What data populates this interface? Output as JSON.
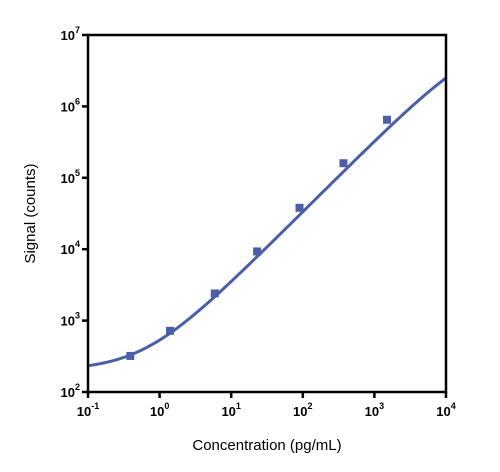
{
  "chart_data": {
    "type": "scatter",
    "title": "",
    "xlabel": "Concentration (pg/mL)",
    "ylabel": "Signal (counts)",
    "x_scale": "log",
    "y_scale": "log",
    "xlim": [
      0.1,
      10000
    ],
    "ylim": [
      100,
      10000000
    ],
    "x_ticks": [
      {
        "value": 0.1,
        "base": "10",
        "exp": "-1"
      },
      {
        "value": 1,
        "base": "10",
        "exp": "0"
      },
      {
        "value": 10,
        "base": "10",
        "exp": "1"
      },
      {
        "value": 100,
        "base": "10",
        "exp": "2"
      },
      {
        "value": 1000,
        "base": "10",
        "exp": "3"
      },
      {
        "value": 10000,
        "base": "10",
        "exp": "4"
      }
    ],
    "y_ticks": [
      {
        "value": 100,
        "base": "10",
        "exp": "2"
      },
      {
        "value": 1000,
        "base": "10",
        "exp": "3"
      },
      {
        "value": 10000,
        "base": "10",
        "exp": "4"
      },
      {
        "value": 100000,
        "base": "10",
        "exp": "5"
      },
      {
        "value": 1000000,
        "base": "10",
        "exp": "6"
      },
      {
        "value": 10000000,
        "base": "10",
        "exp": "7"
      }
    ],
    "grid": false,
    "legend": "none",
    "series": [
      {
        "color": "#4a5fa8",
        "marker": "square",
        "points": [
          {
            "x": 0.39,
            "y": 320
          },
          {
            "x": 1.4,
            "y": 720
          },
          {
            "x": 5.9,
            "y": 2400
          },
          {
            "x": 23,
            "y": 9300
          },
          {
            "x": 90,
            "y": 38000
          },
          {
            "x": 370,
            "y": 160000
          },
          {
            "x": 1500,
            "y": 650000
          }
        ],
        "fit_curve": {
          "model": "4PL",
          "bottom": 200,
          "top": 10000000,
          "ec50": 30000,
          "hill": 1.0,
          "x_range": [
            0.1,
            10000
          ]
        }
      }
    ]
  }
}
